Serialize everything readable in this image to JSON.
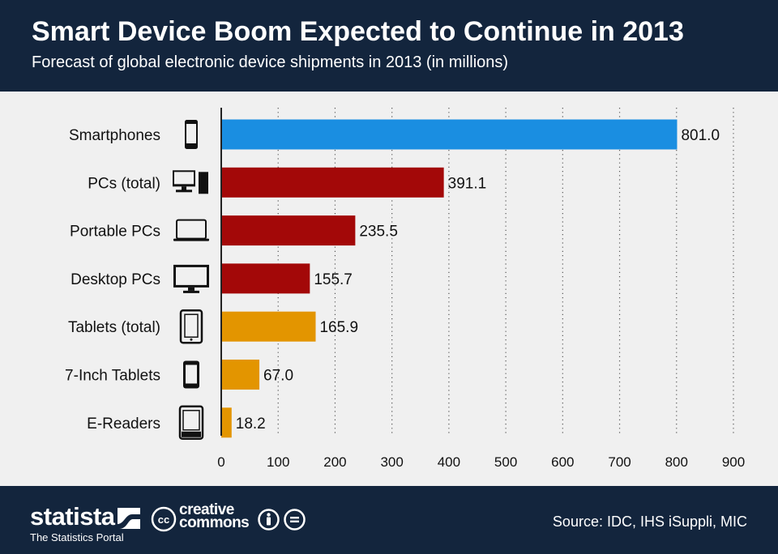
{
  "header": {
    "title": "Smart Device Boom Expected to Continue in 2013",
    "subtitle": "Forecast of global electronic device shipments in 2013 (in millions)"
  },
  "chart_data": {
    "type": "bar",
    "orientation": "horizontal",
    "title": "Smart Device Boom Expected to Continue in 2013",
    "subtitle": "Forecast of global electronic device shipments in 2013 (in millions)",
    "xlabel": "",
    "ylabel": "",
    "xlim": [
      0,
      900
    ],
    "ticks": [
      "0",
      "100",
      "200",
      "300",
      "400",
      "500",
      "600",
      "700",
      "800",
      "900"
    ],
    "grid": true,
    "categories": [
      "Smartphones",
      "PCs (total)",
      "Portable PCs",
      "Desktop PCs",
      "Tablets (total)",
      "7-Inch Tablets",
      "E-Readers"
    ],
    "values": [
      801.0,
      391.1,
      235.5,
      155.7,
      165.9,
      67.0,
      18.2
    ],
    "value_labels": [
      "801.0",
      "391.1",
      "235.5",
      "155.7",
      "165.9",
      "67.0",
      "18.2"
    ],
    "colors": [
      "#1a8ee1",
      "#a30808",
      "#a30808",
      "#a30808",
      "#e39500",
      "#e39500",
      "#e39500"
    ],
    "icons": [
      "smartphone-icon",
      "pc-icon",
      "laptop-icon",
      "desktop-monitor-icon",
      "tablet-icon",
      "small-tablet-icon",
      "ereader-icon"
    ]
  },
  "footer": {
    "brand": "statista",
    "brand_sub": "The Statistics Portal",
    "cc_line1": "creative",
    "cc_line2": "commons",
    "source": "Source: IDC, IHS iSuppli, MIC"
  }
}
